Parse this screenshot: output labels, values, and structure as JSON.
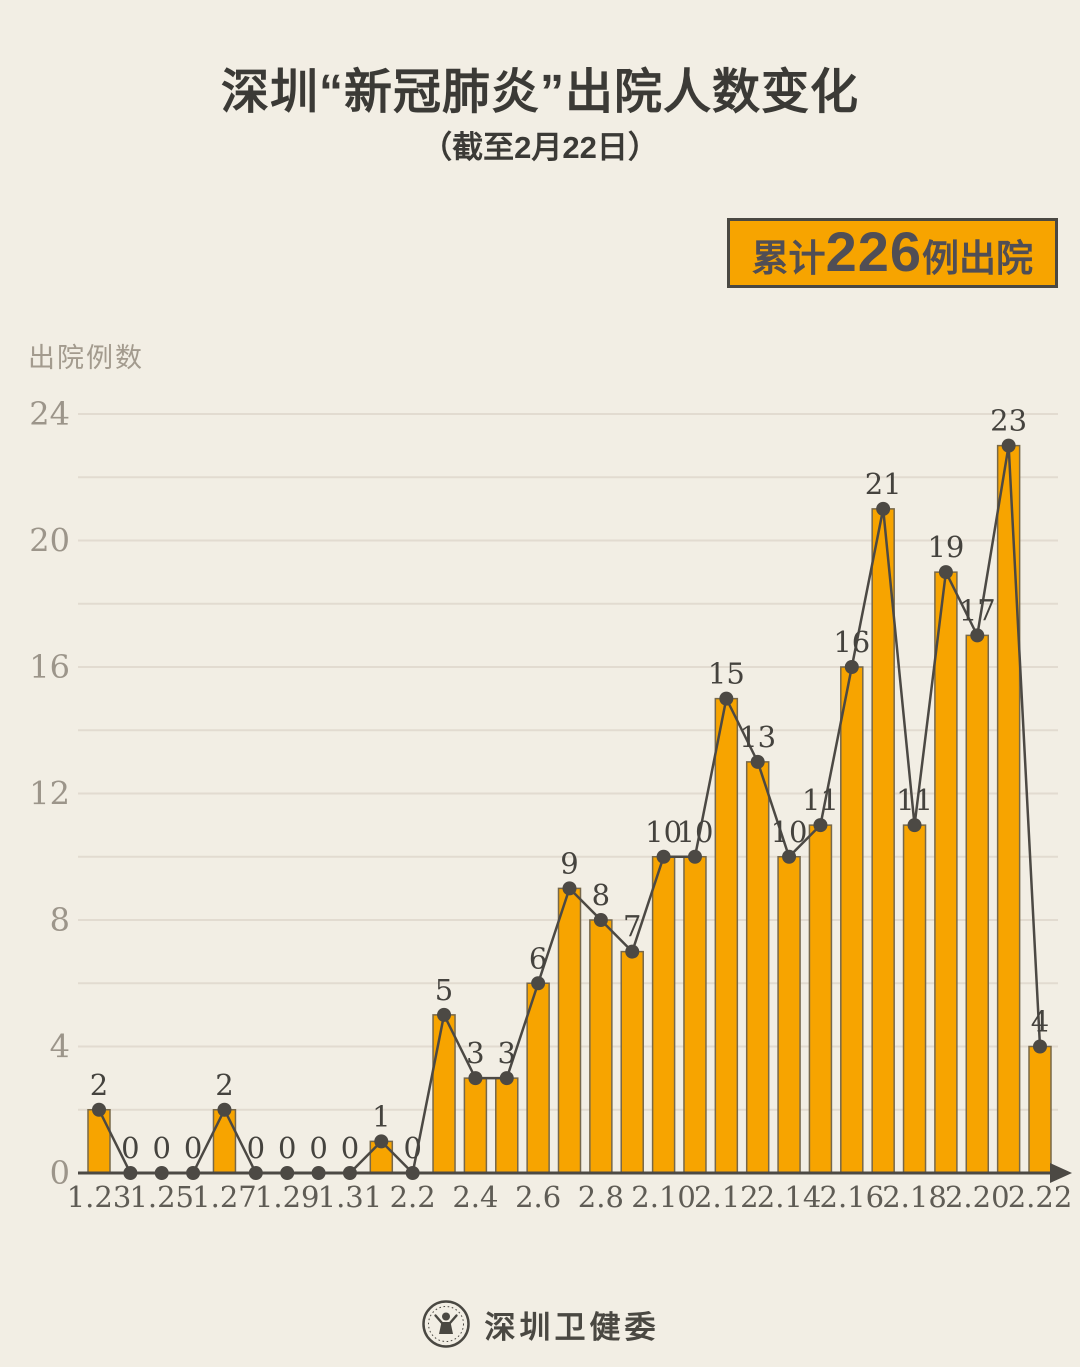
{
  "title": "深圳“新冠肺炎”出院人数变化",
  "subtitle": "（截至2月22日）",
  "badge": {
    "prefix": "累计",
    "number": "226",
    "suffix": "例出院"
  },
  "footer": {
    "org_name": "深圳卫健委"
  },
  "chart_data": {
    "type": "bar",
    "overlay": "line",
    "title": "深圳“新冠肺炎”出院人数变化（截至2月22日）",
    "ylabel": "出院例数",
    "xlabel": "",
    "categories": [
      "1.23",
      "1.24",
      "1.25",
      "1.26",
      "1.27",
      "1.28",
      "1.29",
      "1.30",
      "1.31",
      "2.1",
      "2.2",
      "2.3",
      "2.4",
      "2.5",
      "2.6",
      "2.7",
      "2.8",
      "2.9",
      "2.10",
      "2.11",
      "2.12",
      "2.13",
      "2.14",
      "2.15",
      "2.16",
      "2.17",
      "2.18",
      "2.19",
      "2.20",
      "2.21",
      "2.22"
    ],
    "values": [
      2,
      0,
      0,
      0,
      2,
      0,
      0,
      0,
      0,
      1,
      0,
      5,
      3,
      3,
      6,
      9,
      8,
      7,
      10,
      10,
      15,
      13,
      10,
      11,
      16,
      21,
      11,
      19,
      17,
      23,
      4
    ],
    "xticks_shown": [
      "1.23",
      "1.25",
      "1.27",
      "1.29",
      "1.31",
      "2.2",
      "2.4",
      "2.6",
      "2.8",
      "2.10",
      "2.12",
      "2.14",
      "2.16",
      "2.18",
      "2.20",
      "2.22"
    ],
    "yticks": [
      0,
      4,
      8,
      12,
      16,
      20,
      24
    ],
    "ylim": [
      0,
      24
    ],
    "grid_step": 2,
    "grid": true,
    "legend": false,
    "total": 226,
    "colors": {
      "background": "#F2EEE4",
      "bar_fill": "#F7A400",
      "bar_border": "#77684A",
      "line": "#4C4944",
      "dot": "#4C4944",
      "value_label": "#45433E",
      "x_label": "#5F5C55",
      "y_tick": "#9C958A",
      "grid_line": "#E2DBD0",
      "axis": "#4C4944",
      "accent": "#F7A400",
      "text_dark": "#3B3A36"
    }
  }
}
